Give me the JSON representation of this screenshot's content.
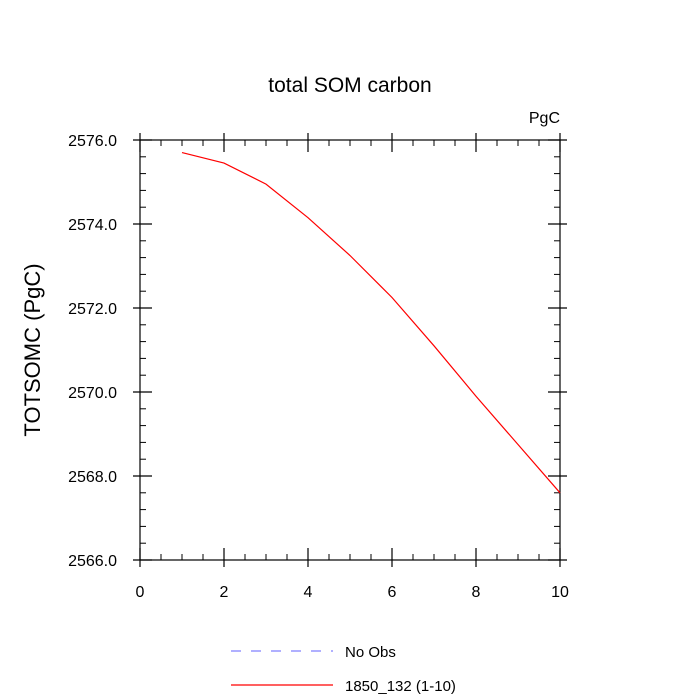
{
  "chart_data": {
    "type": "line",
    "title": "total SOM carbon",
    "subtitle": "PgC",
    "xlabel": "",
    "ylabel": "TOTSOMC  (PgC)",
    "xlim": [
      0,
      10
    ],
    "ylim": [
      2566.0,
      2576.0
    ],
    "x_major_ticks": [
      0,
      2,
      4,
      6,
      8,
      10
    ],
    "x_tick_labels": [
      "0",
      "2",
      "4",
      "6",
      "8",
      "10"
    ],
    "y_major_ticks": [
      2566.0,
      2568.0,
      2570.0,
      2572.0,
      2574.0,
      2576.0
    ],
    "y_tick_labels": [
      "2566.0",
      "2568.0",
      "2570.0",
      "2572.0",
      "2574.0",
      "2576.0"
    ],
    "grid": false,
    "legend_position": "bottom",
    "series": [
      {
        "name": "1850_132 (1-10)",
        "color": "#ff0000",
        "style": "solid",
        "x": [
          1,
          2,
          3,
          4,
          5,
          6,
          7,
          8,
          9,
          10
        ],
        "y": [
          2575.7,
          2575.45,
          2574.95,
          2574.15,
          2573.25,
          2572.25,
          2571.1,
          2569.9,
          2568.75,
          2567.6
        ]
      }
    ],
    "legend": [
      {
        "label": "No Obs",
        "color": "#8080ff",
        "style": "dashed"
      },
      {
        "label": "1850_132 (1-10)",
        "color": "#ff0000",
        "style": "solid"
      }
    ]
  }
}
